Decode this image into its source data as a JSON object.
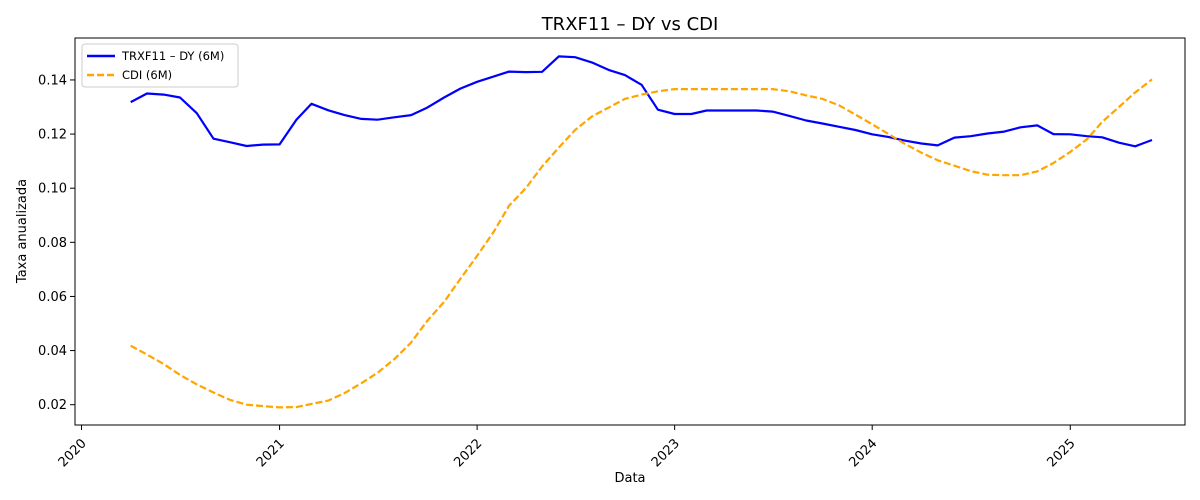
{
  "chart_data": {
    "type": "line",
    "title": "TRXF11 – DY vs CDI",
    "xlabel": "Data",
    "ylabel": "Taxa anualizada",
    "xlim": [
      "2019-12-20",
      "2025-08-01"
    ],
    "ylim": [
      0.0125,
      0.1555
    ],
    "x_ticks": [
      "2020-01-01",
      "2021-01-01",
      "2022-01-01",
      "2023-01-01",
      "2024-01-01",
      "2025-01-01"
    ],
    "x_tick_labels": [
      "2020",
      "2021",
      "2022",
      "2023",
      "2024",
      "2025"
    ],
    "y_ticks": [
      0.02,
      0.04,
      0.06,
      0.08,
      0.1,
      0.12,
      0.14
    ],
    "y_tick_labels": [
      "0.02",
      "0.04",
      "0.06",
      "0.08",
      "0.10",
      "0.12",
      "0.14"
    ],
    "grid": false,
    "legend": "top-left",
    "series": [
      {
        "name": "TRXF11 – DY (6M)",
        "color": "#0000ff",
        "style": "solid",
        "points": [
          [
            "2020-04-01",
            0.1318
          ],
          [
            "2020-05-01",
            0.135
          ],
          [
            "2020-06-01",
            0.1346
          ],
          [
            "2020-07-01",
            0.1335
          ],
          [
            "2020-08-01",
            0.1277
          ],
          [
            "2020-09-01",
            0.1183
          ],
          [
            "2020-10-01",
            0.117
          ],
          [
            "2020-11-01",
            0.1156
          ],
          [
            "2020-12-01",
            0.1161
          ],
          [
            "2021-01-01",
            0.1162
          ],
          [
            "2021-02-01",
            0.1253
          ],
          [
            "2021-03-01",
            0.1312
          ],
          [
            "2021-04-01",
            0.1288
          ],
          [
            "2021-05-01",
            0.127
          ],
          [
            "2021-06-01",
            0.1256
          ],
          [
            "2021-07-01",
            0.1253
          ],
          [
            "2021-08-01",
            0.1262
          ],
          [
            "2021-09-01",
            0.127
          ],
          [
            "2021-10-01",
            0.1298
          ],
          [
            "2021-11-01",
            0.1335
          ],
          [
            "2021-12-01",
            0.1368
          ],
          [
            "2022-01-01",
            0.1393
          ],
          [
            "2022-02-01",
            0.1413
          ],
          [
            "2022-03-01",
            0.1431
          ],
          [
            "2022-04-01",
            0.1429
          ],
          [
            "2022-05-01",
            0.143
          ],
          [
            "2022-06-01",
            0.1487
          ],
          [
            "2022-07-01",
            0.1484
          ],
          [
            "2022-08-01",
            0.1465
          ],
          [
            "2022-09-01",
            0.1437
          ],
          [
            "2022-10-01",
            0.1418
          ],
          [
            "2022-11-01",
            0.1382
          ],
          [
            "2022-12-01",
            0.129
          ],
          [
            "2023-01-01",
            0.1274
          ],
          [
            "2023-02-01",
            0.1274
          ],
          [
            "2023-03-01",
            0.1287
          ],
          [
            "2023-04-01",
            0.1287
          ],
          [
            "2023-05-01",
            0.1287
          ],
          [
            "2023-06-01",
            0.1287
          ],
          [
            "2023-07-01",
            0.1283
          ],
          [
            "2023-08-01",
            0.1267
          ],
          [
            "2023-09-01",
            0.125
          ],
          [
            "2023-10-01",
            0.1239
          ],
          [
            "2023-11-01",
            0.1227
          ],
          [
            "2023-12-01",
            0.1215
          ],
          [
            "2024-01-01",
            0.1199
          ],
          [
            "2024-02-01",
            0.1189
          ],
          [
            "2024-03-01",
            0.1176
          ],
          [
            "2024-04-01",
            0.1165
          ],
          [
            "2024-05-01",
            0.1158
          ],
          [
            "2024-06-01",
            0.1187
          ],
          [
            "2024-07-01",
            0.1192
          ],
          [
            "2024-08-01",
            0.1202
          ],
          [
            "2024-09-01",
            0.1209
          ],
          [
            "2024-10-01",
            0.1225
          ],
          [
            "2024-11-01",
            0.1232
          ],
          [
            "2024-12-01",
            0.12
          ],
          [
            "2025-01-01",
            0.1199
          ],
          [
            "2025-02-01",
            0.1192
          ],
          [
            "2025-03-01",
            0.1188
          ],
          [
            "2025-04-01",
            0.1168
          ],
          [
            "2025-05-01",
            0.1155
          ],
          [
            "2025-06-01",
            0.1178
          ]
        ]
      },
      {
        "name": "CDI (6M)",
        "color": "#ffa500",
        "style": "dashed",
        "points": [
          [
            "2020-04-01",
            0.0418
          ],
          [
            "2020-05-01",
            0.0385
          ],
          [
            "2020-06-01",
            0.035
          ],
          [
            "2020-07-01",
            0.031
          ],
          [
            "2020-08-01",
            0.0275
          ],
          [
            "2020-09-01",
            0.0245
          ],
          [
            "2020-10-01",
            0.0218
          ],
          [
            "2020-11-01",
            0.02
          ],
          [
            "2020-12-01",
            0.0195
          ],
          [
            "2021-01-01",
            0.019
          ],
          [
            "2021-02-01",
            0.0191
          ],
          [
            "2021-03-01",
            0.0203
          ],
          [
            "2021-04-01",
            0.0215
          ],
          [
            "2021-05-01",
            0.0243
          ],
          [
            "2021-06-01",
            0.0279
          ],
          [
            "2021-07-01",
            0.0318
          ],
          [
            "2021-08-01",
            0.0368
          ],
          [
            "2021-09-01",
            0.043
          ],
          [
            "2021-10-01",
            0.051
          ],
          [
            "2021-11-01",
            0.058
          ],
          [
            "2021-12-01",
            0.0665
          ],
          [
            "2022-01-01",
            0.075
          ],
          [
            "2022-02-01",
            0.084
          ],
          [
            "2022-03-01",
            0.0935
          ],
          [
            "2022-04-01",
            0.1
          ],
          [
            "2022-05-01",
            0.108
          ],
          [
            "2022-06-01",
            0.115
          ],
          [
            "2022-07-01",
            0.1215
          ],
          [
            "2022-08-01",
            0.1265
          ],
          [
            "2022-09-01",
            0.1298
          ],
          [
            "2022-10-01",
            0.133
          ],
          [
            "2022-11-01",
            0.1346
          ],
          [
            "2022-12-01",
            0.1358
          ],
          [
            "2023-01-01",
            0.1366
          ],
          [
            "2023-02-01",
            0.1366
          ],
          [
            "2023-03-01",
            0.1366
          ],
          [
            "2023-04-01",
            0.1366
          ],
          [
            "2023-05-01",
            0.1366
          ],
          [
            "2023-06-01",
            0.1366
          ],
          [
            "2023-07-01",
            0.1366
          ],
          [
            "2023-08-01",
            0.1358
          ],
          [
            "2023-09-01",
            0.1343
          ],
          [
            "2023-10-01",
            0.133
          ],
          [
            "2023-11-01",
            0.1306
          ],
          [
            "2023-12-01",
            0.1272
          ],
          [
            "2024-01-01",
            0.1236
          ],
          [
            "2024-02-01",
            0.1199
          ],
          [
            "2024-03-01",
            0.1164
          ],
          [
            "2024-04-01",
            0.1131
          ],
          [
            "2024-05-01",
            0.1103
          ],
          [
            "2024-06-01",
            0.1083
          ],
          [
            "2024-07-01",
            0.1063
          ],
          [
            "2024-08-01",
            0.105
          ],
          [
            "2024-09-01",
            0.1048
          ],
          [
            "2024-10-01",
            0.1048
          ],
          [
            "2024-11-01",
            0.1062
          ],
          [
            "2024-12-01",
            0.1093
          ],
          [
            "2025-01-01",
            0.1134
          ],
          [
            "2025-02-01",
            0.1181
          ],
          [
            "2025-03-01",
            0.1245
          ],
          [
            "2025-04-01",
            0.13
          ],
          [
            "2025-05-01",
            0.1354
          ],
          [
            "2025-06-01",
            0.1402
          ]
        ]
      }
    ]
  }
}
